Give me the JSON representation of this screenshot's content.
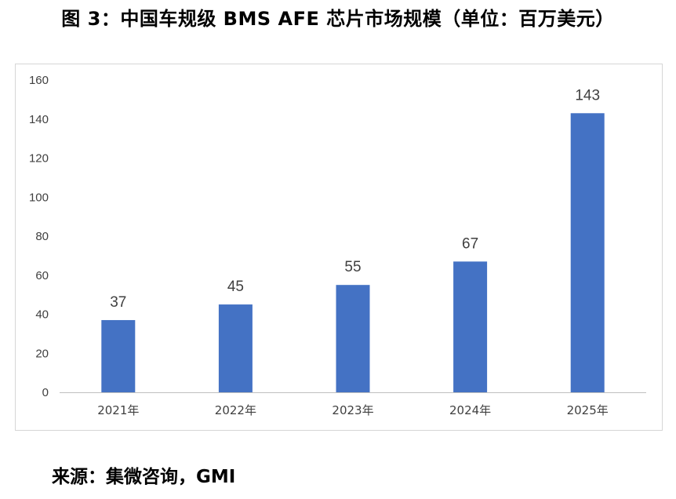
{
  "figure": {
    "title": "图 3：中国车规级 BMS AFE 芯片市场规模（单位：百万美元）",
    "source": "来源：集微咨询，GMI"
  },
  "chart_data": {
    "type": "bar",
    "title": "图 3：中国车规级 BMS AFE 芯片市场规模（单位：百万美元）",
    "categories": [
      "2021年",
      "2022年",
      "2023年",
      "2024年",
      "2025年"
    ],
    "values": [
      37,
      45,
      55,
      67,
      143
    ],
    "ylim": [
      0,
      160
    ],
    "yticks": [
      0,
      20,
      40,
      60,
      80,
      100,
      120,
      140,
      160
    ],
    "xlabel": "",
    "ylabel": "",
    "grid": false,
    "legend": "none",
    "bar_color": "#4472C4",
    "axis_color": "#BFBFBF",
    "data_labels": true
  }
}
